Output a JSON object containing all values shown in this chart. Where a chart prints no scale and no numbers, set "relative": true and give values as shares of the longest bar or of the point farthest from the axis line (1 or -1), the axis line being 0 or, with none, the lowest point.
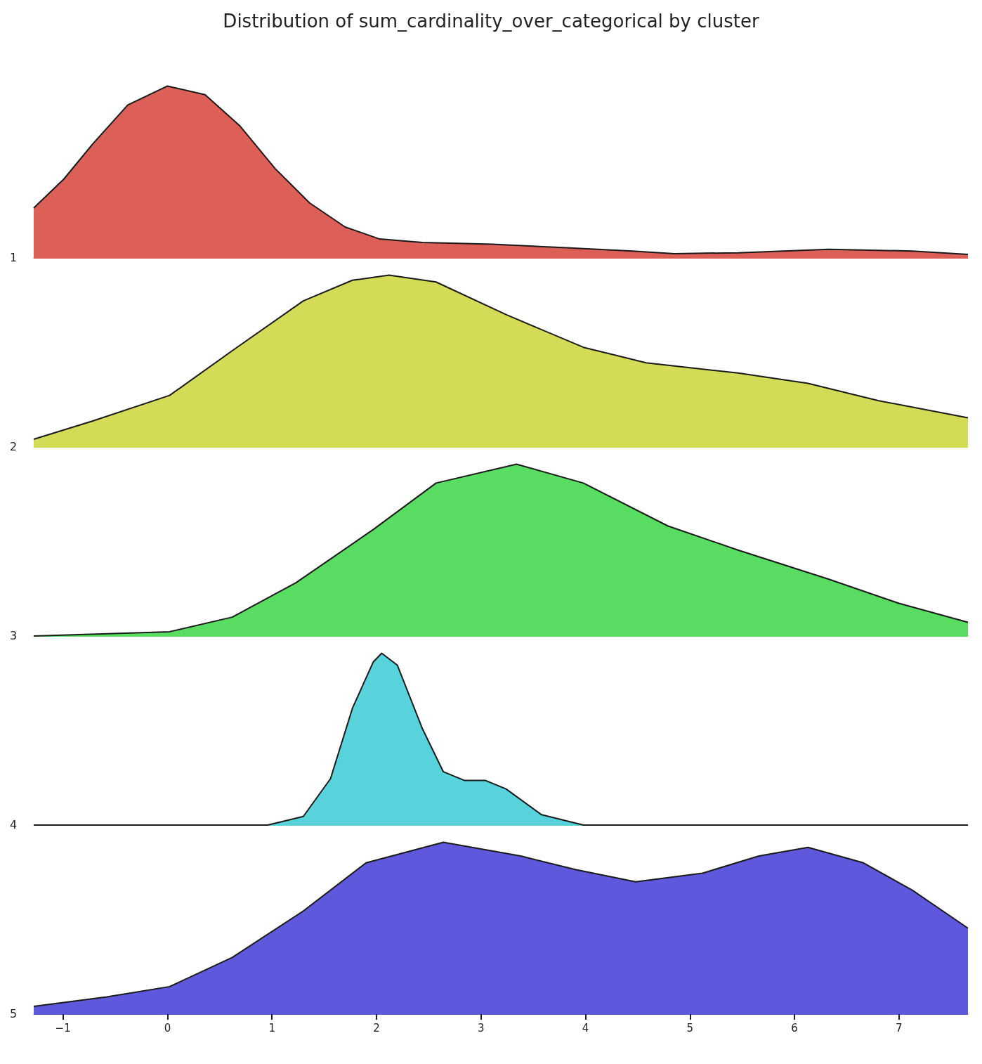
{
  "chart_data": [
    {
      "type": "area",
      "title": "Distribution of sum_cardinality_over_categorical by cluster",
      "ylabel": "1",
      "relative": true,
      "xlim": [
        -1.28,
        7.66
      ],
      "tick_labels": false,
      "x": [
        -1.28,
        -0.99,
        -0.72,
        -0.38,
        0,
        0.36,
        0.69,
        1.03,
        1.36,
        1.7,
        2.03,
        2.44,
        3.11,
        3.78,
        4.45,
        4.85,
        5.46,
        6.33,
        7.13,
        7.66
      ],
      "series": [
        {
          "color": "#dd6058",
          "values": [
            0.29,
            0.46,
            0.66,
            0.89,
            1,
            0.95,
            0.77,
            0.52,
            0.32,
            0.18,
            0.11,
            0.09,
            0.08,
            0.06,
            0.04,
            0.025,
            0.03,
            0.05,
            0.04,
            0.02
          ]
        }
      ]
    },
    {
      "type": "area",
      "ylabel": "2",
      "relative": true,
      "xlim": [
        -1.28,
        7.66
      ],
      "tick_labels": false,
      "x": [
        -1.28,
        -0.72,
        0.02,
        0.62,
        1.3,
        1.77,
        2.12,
        2.57,
        3.24,
        3.98,
        4.58,
        5.46,
        6.13,
        6.8,
        7.66
      ],
      "series": [
        {
          "color": "#d4dc57",
          "values": [
            0.045,
            0.15,
            0.3,
            0.56,
            0.85,
            0.97,
            1,
            0.96,
            0.77,
            0.58,
            0.49,
            0.43,
            0.37,
            0.27,
            0.17
          ]
        }
      ]
    },
    {
      "type": "area",
      "ylabel": "3",
      "relative": true,
      "xlim": [
        -1.28,
        7.66
      ],
      "tick_labels": false,
      "x": [
        -1.28,
        0.02,
        0.62,
        1.23,
        1.97,
        2.57,
        3.34,
        3.98,
        4.79,
        5.46,
        6.33,
        7,
        7.66
      ],
      "series": [
        {
          "color": "#58dc61",
          "values": [
            0,
            0.025,
            0.11,
            0.31,
            0.62,
            0.89,
            1,
            0.89,
            0.64,
            0.5,
            0.33,
            0.19,
            0.08
          ]
        }
      ]
    },
    {
      "type": "area",
      "ylabel": "4",
      "relative": true,
      "xlim": [
        -1.28,
        7.66
      ],
      "tick_labels": false,
      "x": [
        -1.28,
        0.96,
        1.3,
        1.56,
        1.77,
        1.97,
        2.05,
        2.2,
        2.44,
        2.64,
        2.84,
        3.04,
        3.24,
        3.58,
        3.98,
        7.66
      ],
      "series": [
        {
          "color": "#58d3dc",
          "values": [
            0,
            0,
            0.05,
            0.27,
            0.68,
            0.95,
            1,
            0.93,
            0.56,
            0.31,
            0.26,
            0.26,
            0.21,
            0.06,
            0,
            0
          ]
        }
      ]
    },
    {
      "type": "area",
      "ylabel": "5",
      "relative": true,
      "xlim": [
        -1.28,
        7.66
      ],
      "xticks": [
        {
          "value": -1,
          "label": "−1"
        },
        0,
        1,
        2,
        3,
        4,
        5,
        6,
        7
      ],
      "tick_labels": "x",
      "x": [
        -1.28,
        -0.58,
        0.02,
        0.62,
        1.3,
        1.9,
        2.64,
        3.38,
        3.91,
        4.48,
        5.12,
        5.66,
        6.13,
        6.66,
        7.13,
        7.66
      ],
      "series": [
        {
          "color": "#5e58dc",
          "values": [
            0.045,
            0.1,
            0.16,
            0.33,
            0.6,
            0.88,
            1,
            0.92,
            0.84,
            0.77,
            0.82,
            0.92,
            0.97,
            0.88,
            0.72,
            0.5
          ]
        }
      ]
    }
  ]
}
